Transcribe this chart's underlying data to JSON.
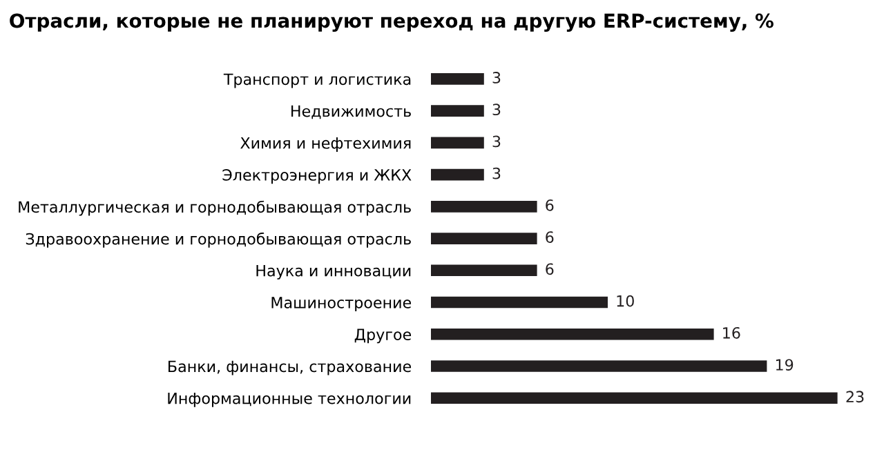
{
  "chart_data": {
    "type": "bar",
    "orientation": "horizontal",
    "title": "Отрасли, которые не планируют переход на другую ERP-систему, %",
    "categories": [
      "Транспорт и логистика",
      "Недвижимость",
      "Химия и нефтехимия",
      "Электроэнергия и ЖКХ",
      "Металлургическая и горнодобывающая отрасль",
      "Здравоохранение и горнодобывающая отрасль",
      "Наука и инновации",
      "Машиностроение",
      "Другое",
      "Банки, финансы, страхование",
      "Информационные технологии"
    ],
    "values": [
      3,
      3,
      3,
      3,
      6,
      6,
      6,
      10,
      16,
      19,
      23
    ],
    "color": "#231f20",
    "data_labels": true,
    "grid": false,
    "legend": false
  }
}
